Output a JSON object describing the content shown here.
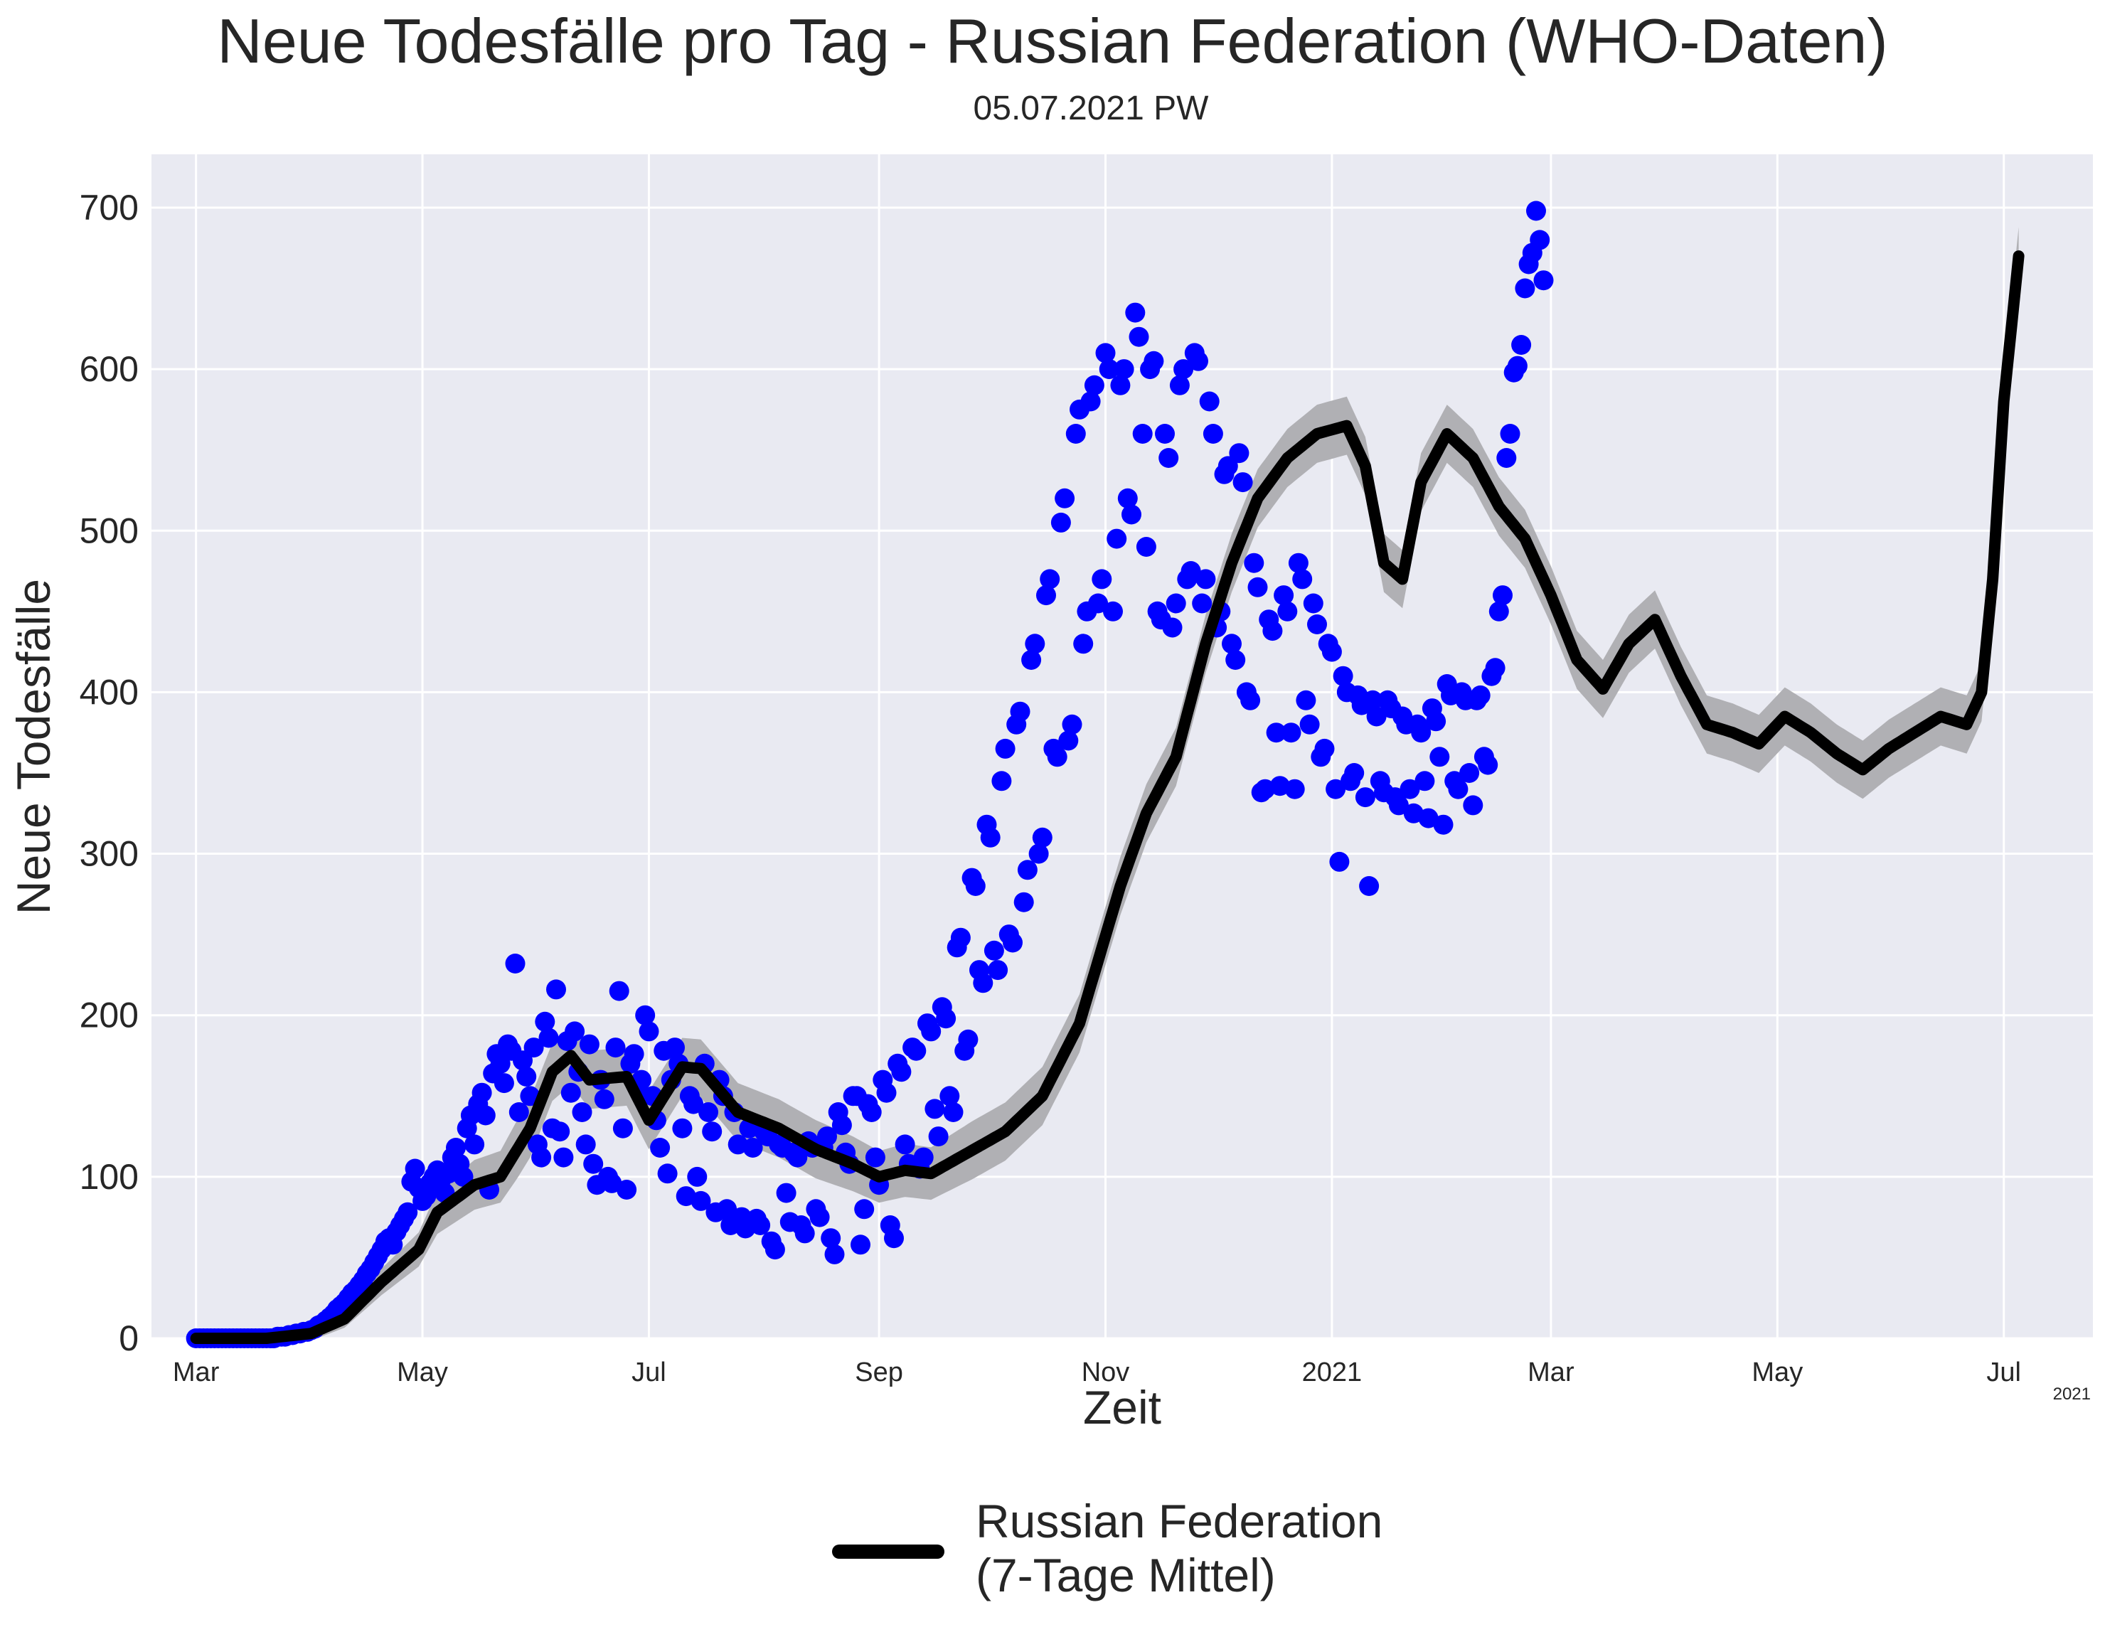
{
  "chart_data": {
    "type": "scatter",
    "title": "Neue Todesfälle pro Tag - Russian Federation (WHO-Daten)",
    "subtitle": "05.07.2021 PW",
    "xlabel": "Zeit",
    "ylabel": "Neue Todesfälle",
    "x_start": "2020-03-01",
    "x_end": "2021-07-05",
    "xlim": [
      "2020-02-18",
      "2021-07-25"
    ],
    "ylim": [
      0,
      733
    ],
    "yticks": [
      0,
      100,
      200,
      300,
      400,
      500,
      600,
      700
    ],
    "xticks": [
      {
        "date": "2020-03-01",
        "label": "Mar"
      },
      {
        "date": "2020-05-01",
        "label": "May"
      },
      {
        "date": "2020-07-01",
        "label": "Jul"
      },
      {
        "date": "2020-09-01",
        "label": "Sep"
      },
      {
        "date": "2020-11-01",
        "label": "Nov"
      },
      {
        "date": "2021-01-01",
        "label": "2021"
      },
      {
        "date": "2021-03-01",
        "label": "Mar"
      },
      {
        "date": "2021-05-01",
        "label": "May"
      },
      {
        "date": "2021-07-01",
        "label": "Jul"
      }
    ],
    "x_offset_label": "2021",
    "grid": true,
    "legend_position": "bottom-center",
    "background": "#e9eaf2",
    "colors": {
      "points": "#0000ff",
      "mean": "#000000",
      "band": "#b0b0b4"
    },
    "series": [
      {
        "name": "Russian Federation\n(7-Tage Mittel)",
        "kind": "line",
        "anchors": [
          [
            "2020-03-01",
            0
          ],
          [
            "2020-03-20",
            0
          ],
          [
            "2020-04-01",
            3
          ],
          [
            "2020-04-10",
            12
          ],
          [
            "2020-04-20",
            35
          ],
          [
            "2020-04-30",
            55
          ],
          [
            "2020-05-05",
            78
          ],
          [
            "2020-05-15",
            95
          ],
          [
            "2020-05-22",
            100
          ],
          [
            "2020-05-30",
            130
          ],
          [
            "2020-06-05",
            165
          ],
          [
            "2020-06-10",
            175
          ],
          [
            "2020-06-15",
            160
          ],
          [
            "2020-06-25",
            162
          ],
          [
            "2020-07-01",
            135
          ],
          [
            "2020-07-10",
            168
          ],
          [
            "2020-07-15",
            167
          ],
          [
            "2020-07-25",
            140
          ],
          [
            "2020-08-05",
            130
          ],
          [
            "2020-08-15",
            117
          ],
          [
            "2020-08-25",
            108
          ],
          [
            "2020-09-01",
            100
          ],
          [
            "2020-09-08",
            104
          ],
          [
            "2020-09-15",
            102
          ],
          [
            "2020-09-25",
            115
          ],
          [
            "2020-10-05",
            128
          ],
          [
            "2020-10-15",
            150
          ],
          [
            "2020-10-25",
            195
          ],
          [
            "2020-11-05",
            280
          ],
          [
            "2020-11-12",
            325
          ],
          [
            "2020-11-20",
            360
          ],
          [
            "2020-11-28",
            430
          ],
          [
            "2020-12-05",
            480
          ],
          [
            "2020-12-12",
            520
          ],
          [
            "2020-12-20",
            545
          ],
          [
            "2020-12-28",
            560
          ],
          [
            "2021-01-05",
            565
          ],
          [
            "2021-01-10",
            540
          ],
          [
            "2021-01-15",
            480
          ],
          [
            "2021-01-20",
            470
          ],
          [
            "2021-01-25",
            530
          ],
          [
            "2021-02-01",
            560
          ],
          [
            "2021-02-08",
            545
          ],
          [
            "2021-02-15",
            515
          ],
          [
            "2021-02-22",
            495
          ],
          [
            "2021-03-01",
            460
          ],
          [
            "2021-03-08",
            420
          ],
          [
            "2021-03-15",
            402
          ],
          [
            "2021-03-22",
            430
          ],
          [
            "2021-03-29",
            445
          ],
          [
            "2021-04-05",
            410
          ],
          [
            "2021-04-12",
            380
          ],
          [
            "2021-04-19",
            375
          ],
          [
            "2021-04-26",
            368
          ],
          [
            "2021-05-03",
            385
          ],
          [
            "2021-05-10",
            375
          ],
          [
            "2021-05-17",
            362
          ],
          [
            "2021-05-24",
            352
          ],
          [
            "2021-05-31",
            365
          ],
          [
            "2021-06-07",
            375
          ],
          [
            "2021-06-14",
            385
          ],
          [
            "2021-06-21",
            380
          ],
          [
            "2021-06-25",
            400
          ],
          [
            "2021-06-28",
            470
          ],
          [
            "2021-07-01",
            580
          ],
          [
            "2021-07-05",
            670
          ]
        ],
        "band_halfwidth": 18
      },
      {
        "name": "",
        "kind": "points",
        "note_values": "daily values estimated from the plot",
        "values": [
          0,
          0,
          0,
          0,
          0,
          0,
          0,
          0,
          0,
          0,
          0,
          0,
          0,
          0,
          0,
          0,
          0,
          0,
          0,
          0,
          0,
          0,
          1,
          1,
          1,
          2,
          2,
          3,
          3,
          4,
          4,
          5,
          6,
          8,
          9,
          11,
          13,
          15,
          18,
          20,
          22,
          25,
          28,
          30,
          33,
          36,
          40,
          43,
          47,
          51,
          55,
          60,
          62,
          58,
          66,
          70,
          74,
          78,
          97,
          105,
          93,
          85,
          88,
          96,
          100,
          104,
          98,
          90,
          102,
          112,
          118,
          108,
          100,
          130,
          138,
          120,
          145,
          152,
          138,
          92,
          164,
          176,
          170,
          158,
          182,
          178,
          232,
          140,
          172,
          162,
          150,
          180,
          120,
          112,
          196,
          186,
          130,
          216,
          128,
          112,
          184,
          152,
          190,
          165,
          140,
          120,
          182,
          108,
          95,
          160,
          148,
          100,
          96,
          180,
          215,
          130,
          92,
          170,
          176,
          155,
          160,
          200,
          190,
          150,
          135,
          118,
          178,
          102,
          160,
          180,
          170,
          130,
          88,
          150,
          145,
          100,
          85,
          170,
          140,
          128,
          78,
          160,
          150,
          80,
          70,
          140,
          120,
          75,
          68,
          130,
          118,
          74,
          70,
          128,
          125,
          60,
          55,
          120,
          118,
          90,
          72,
          115,
          112,
          70,
          65,
          122,
          118,
          80,
          75,
          118,
          125,
          62,
          52,
          140,
          132,
          115,
          108,
          150,
          150,
          58,
          80,
          145,
          140,
          112,
          95,
          160,
          152,
          70,
          62,
          170,
          165,
          120,
          108,
          180,
          178,
          105,
          112,
          195,
          190,
          142,
          125,
          205,
          198,
          150,
          140,
          242,
          248,
          178,
          185,
          285,
          280,
          228,
          220,
          318,
          310,
          240,
          228,
          345,
          365,
          250,
          245,
          380,
          388,
          270,
          290,
          420,
          430,
          300,
          310,
          460,
          470,
          365,
          360,
          505,
          520,
          370,
          380,
          560,
          575,
          430,
          450,
          580,
          590,
          455,
          470,
          610,
          600,
          450,
          495,
          590,
          600,
          520,
          510,
          635,
          620,
          560,
          490,
          600,
          605,
          450,
          445,
          560,
          545,
          440,
          455,
          590,
          600,
          470,
          475,
          610,
          605,
          455,
          470,
          580,
          560,
          440,
          450,
          535,
          540,
          430,
          420,
          548,
          530,
          400,
          395,
          480,
          465,
          338,
          340,
          445,
          438,
          375,
          342,
          460,
          450,
          375,
          340,
          480,
          470,
          395,
          380,
          455,
          442,
          360,
          365,
          430,
          425,
          340,
          295,
          410,
          400,
          345,
          350,
          398,
          392,
          335,
          280,
          395,
          385,
          345,
          338,
          395,
          390,
          335,
          330,
          385,
          380,
          340,
          325,
          380,
          375,
          345,
          322,
          390,
          382,
          360,
          318,
          405,
          398,
          345,
          340,
          400,
          395,
          350,
          330,
          395,
          398,
          360,
          355,
          410,
          415,
          450,
          460,
          545,
          560,
          598,
          602,
          615,
          650,
          665,
          672,
          698,
          680,
          655
        ]
      }
    ]
  }
}
